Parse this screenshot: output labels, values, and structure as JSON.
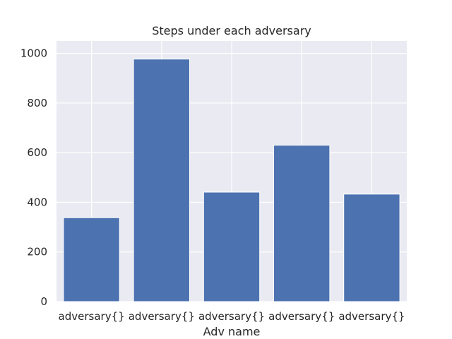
{
  "chart_data": {
    "type": "bar",
    "title": "Steps under each adversary",
    "xlabel": "Adv name",
    "ylabel": "",
    "categories": [
      "adversary{}",
      "adversary{}",
      "adversary{}",
      "adversary{}",
      "adversary{}"
    ],
    "values": [
      338,
      977,
      441,
      630,
      433
    ],
    "ylim": [
      0,
      1050
    ],
    "yticks": [
      0,
      200,
      400,
      600,
      800,
      1000
    ],
    "grid": true,
    "colors": {
      "bar": "#4c72b0",
      "background": "#eaeaf2",
      "grid": "#ffffff",
      "text": "#262626"
    }
  }
}
